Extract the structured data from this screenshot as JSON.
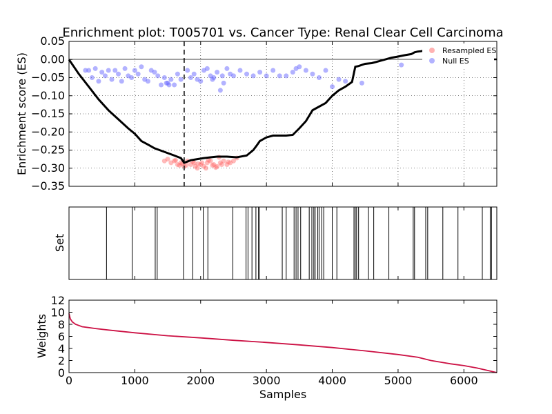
{
  "chart_data": {
    "title": "Enrichment plot: T005701 vs. Cancer Type: Renal Clear Cell Carcinoma",
    "xlabel": "Samples",
    "xlim": [
      0,
      6500
    ],
    "xticks": [
      "0",
      "1000",
      "2000",
      "3000",
      "4000",
      "5000",
      "6000"
    ],
    "panels": [
      {
        "id": "es",
        "type": "line",
        "ylabel": "Enrichment score (ES)",
        "ylim": [
          -0.35,
          0.05
        ],
        "yticks": [
          "0.05",
          "0.00",
          "−0.05",
          "−0.10",
          "−0.15",
          "−0.20",
          "−0.25",
          "−0.30",
          "−0.35"
        ],
        "ytick_values": [
          0.05,
          0.0,
          -0.05,
          -0.1,
          -0.15,
          -0.2,
          -0.25,
          -0.3,
          -0.35
        ],
        "grid": true,
        "legend": {
          "placement": "top-right",
          "entries": [
            "Resampled ES",
            "Null ES"
          ]
        },
        "vline_x": 1750,
        "series": [
          {
            "kind": "line",
            "color": "#000000",
            "x": [
              0,
              150,
              300,
              450,
              600,
              750,
              900,
              1000,
              1100,
              1200,
              1300,
              1450,
              1600,
              1700,
              1750,
              1850,
              1950,
              2050,
              2150,
              2250,
              2400,
              2550,
              2700,
              2800,
              2850,
              2900,
              3000,
              3100,
              3300,
              3400,
              3500,
              3600,
              3700,
              3800,
              3900,
              4000,
              4100,
              4200,
              4300,
              4350,
              4400,
              4500,
              4600,
              4700,
              4800,
              4900,
              5000,
              5100,
              5200,
              5250,
              5300,
              5350,
              5400
            ],
            "y": [
              0.0,
              -0.04,
              -0.075,
              -0.11,
              -0.14,
              -0.165,
              -0.19,
              -0.205,
              -0.225,
              -0.235,
              -0.245,
              -0.255,
              -0.265,
              -0.272,
              -0.285,
              -0.278,
              -0.275,
              -0.272,
              -0.27,
              -0.268,
              -0.268,
              -0.27,
              -0.265,
              -0.25,
              -0.238,
              -0.225,
              -0.215,
              -0.21,
              -0.21,
              -0.208,
              -0.19,
              -0.17,
              -0.14,
              -0.13,
              -0.12,
              -0.1,
              -0.085,
              -0.075,
              -0.062,
              -0.02,
              -0.018,
              -0.012,
              -0.01,
              -0.005,
              0.0,
              0.005,
              0.008,
              0.012,
              0.015,
              0.02,
              0.022,
              0.023,
              0.025
            ]
          },
          {
            "kind": "scatter",
            "name": "Resampled ES",
            "color": "#ff6666",
            "x": [
              1450,
              1500,
              1550,
              1600,
              1650,
              1700,
              1750,
              1800,
              1850,
              1900,
              1950,
              2000,
              2050,
              2100,
              2150,
              2200,
              2250,
              2300,
              2350,
              2400,
              2450,
              2500,
              2550,
              1620,
              1720,
              1780,
              1880,
              1920,
              2020,
              2080,
              2180,
              2280,
              2320,
              2420,
              1680,
              1960,
              2120,
              2230
            ],
            "y": [
              -0.28,
              -0.275,
              -0.285,
              -0.28,
              -0.29,
              -0.285,
              -0.295,
              -0.28,
              -0.29,
              -0.285,
              -0.3,
              -0.29,
              -0.295,
              -0.285,
              -0.28,
              -0.29,
              -0.295,
              -0.285,
              -0.28,
              -0.29,
              -0.285,
              -0.28,
              -0.272,
              -0.278,
              -0.288,
              -0.292,
              -0.282,
              -0.295,
              -0.285,
              -0.3,
              -0.292,
              -0.27,
              -0.29,
              -0.283,
              -0.292,
              -0.288,
              -0.278,
              -0.298
            ]
          },
          {
            "kind": "scatter",
            "name": "Null ES",
            "color": "#6666ff",
            "x": [
              250,
              300,
              350,
              400,
              450,
              500,
              550,
              600,
              650,
              700,
              750,
              800,
              850,
              900,
              950,
              1000,
              1050,
              1100,
              1150,
              1200,
              1250,
              1300,
              1350,
              1400,
              1450,
              1500,
              1550,
              1600,
              1650,
              1700,
              1800,
              1850,
              1900,
              1950,
              2000,
              2050,
              2100,
              2150,
              2200,
              2250,
              2300,
              2350,
              2400,
              2450,
              2500,
              2600,
              2700,
              2800,
              2900,
              3000,
              3100,
              3200,
              3300,
              3400,
              3500,
              3600,
              3700,
              3800,
              3900,
              4000,
              4100,
              4200,
              4450,
              5050,
              1480,
              1520,
              2330,
              3450,
              2180
            ],
            "y": [
              -0.03,
              -0.03,
              -0.05,
              -0.025,
              -0.06,
              -0.035,
              -0.045,
              -0.03,
              -0.055,
              -0.03,
              -0.04,
              -0.06,
              -0.025,
              -0.045,
              -0.05,
              -0.03,
              -0.04,
              -0.02,
              -0.055,
              -0.06,
              -0.03,
              -0.035,
              -0.045,
              -0.07,
              -0.05,
              -0.065,
              -0.055,
              -0.07,
              -0.04,
              -0.055,
              -0.03,
              -0.05,
              -0.04,
              -0.055,
              -0.06,
              -0.03,
              -0.025,
              -0.045,
              -0.05,
              -0.035,
              -0.085,
              -0.065,
              -0.025,
              -0.04,
              -0.045,
              -0.03,
              -0.04,
              -0.045,
              -0.035,
              -0.045,
              -0.03,
              -0.045,
              -0.045,
              -0.035,
              -0.02,
              -0.03,
              -0.04,
              -0.05,
              -0.03,
              -0.075,
              -0.055,
              -0.06,
              -0.065,
              -0.015,
              -0.065,
              -0.07,
              -0.045,
              -0.025,
              -0.055
            ]
          }
        ]
      },
      {
        "id": "set",
        "type": "rug",
        "ylabel": "Set",
        "positions": [
          570,
          960,
          1310,
          1340,
          1740,
          1880,
          2040,
          2110,
          2490,
          2690,
          2720,
          2780,
          2840,
          2880,
          2890,
          3240,
          3300,
          3420,
          3450,
          3480,
          3520,
          3650,
          3690,
          3720,
          3740,
          3780,
          3800,
          3840,
          3870,
          4000,
          4070,
          4330,
          4350,
          4370,
          4400,
          4550,
          4630,
          4860,
          5230,
          5250,
          5420,
          5450,
          5680,
          5910,
          6280,
          6400,
          6420
        ]
      },
      {
        "id": "weights",
        "type": "line",
        "ylabel": "Weights",
        "ylim": [
          0,
          12
        ],
        "yticks": [
          "12",
          "10",
          "8",
          "6",
          "4",
          "2",
          "0"
        ],
        "ytick_values": [
          12,
          10,
          8,
          6,
          4,
          2,
          0
        ],
        "series": [
          {
            "kind": "line",
            "color": "#cc1144",
            "x": [
              0,
              20,
              50,
              100,
              200,
              400,
              600,
              1000,
              1500,
              2000,
              2500,
              3000,
              3500,
              4000,
              4500,
              5000,
              5300,
              5500,
              5800,
              6000,
              6200,
              6400,
              6500
            ],
            "y": [
              9.8,
              8.9,
              8.4,
              8.0,
              7.6,
              7.3,
              7.05,
              6.6,
              6.1,
              5.75,
              5.35,
              5.0,
              4.6,
              4.15,
              3.6,
              3.0,
              2.55,
              2.0,
              1.45,
              1.15,
              0.75,
              0.25,
              0.0
            ]
          }
        ]
      }
    ]
  }
}
